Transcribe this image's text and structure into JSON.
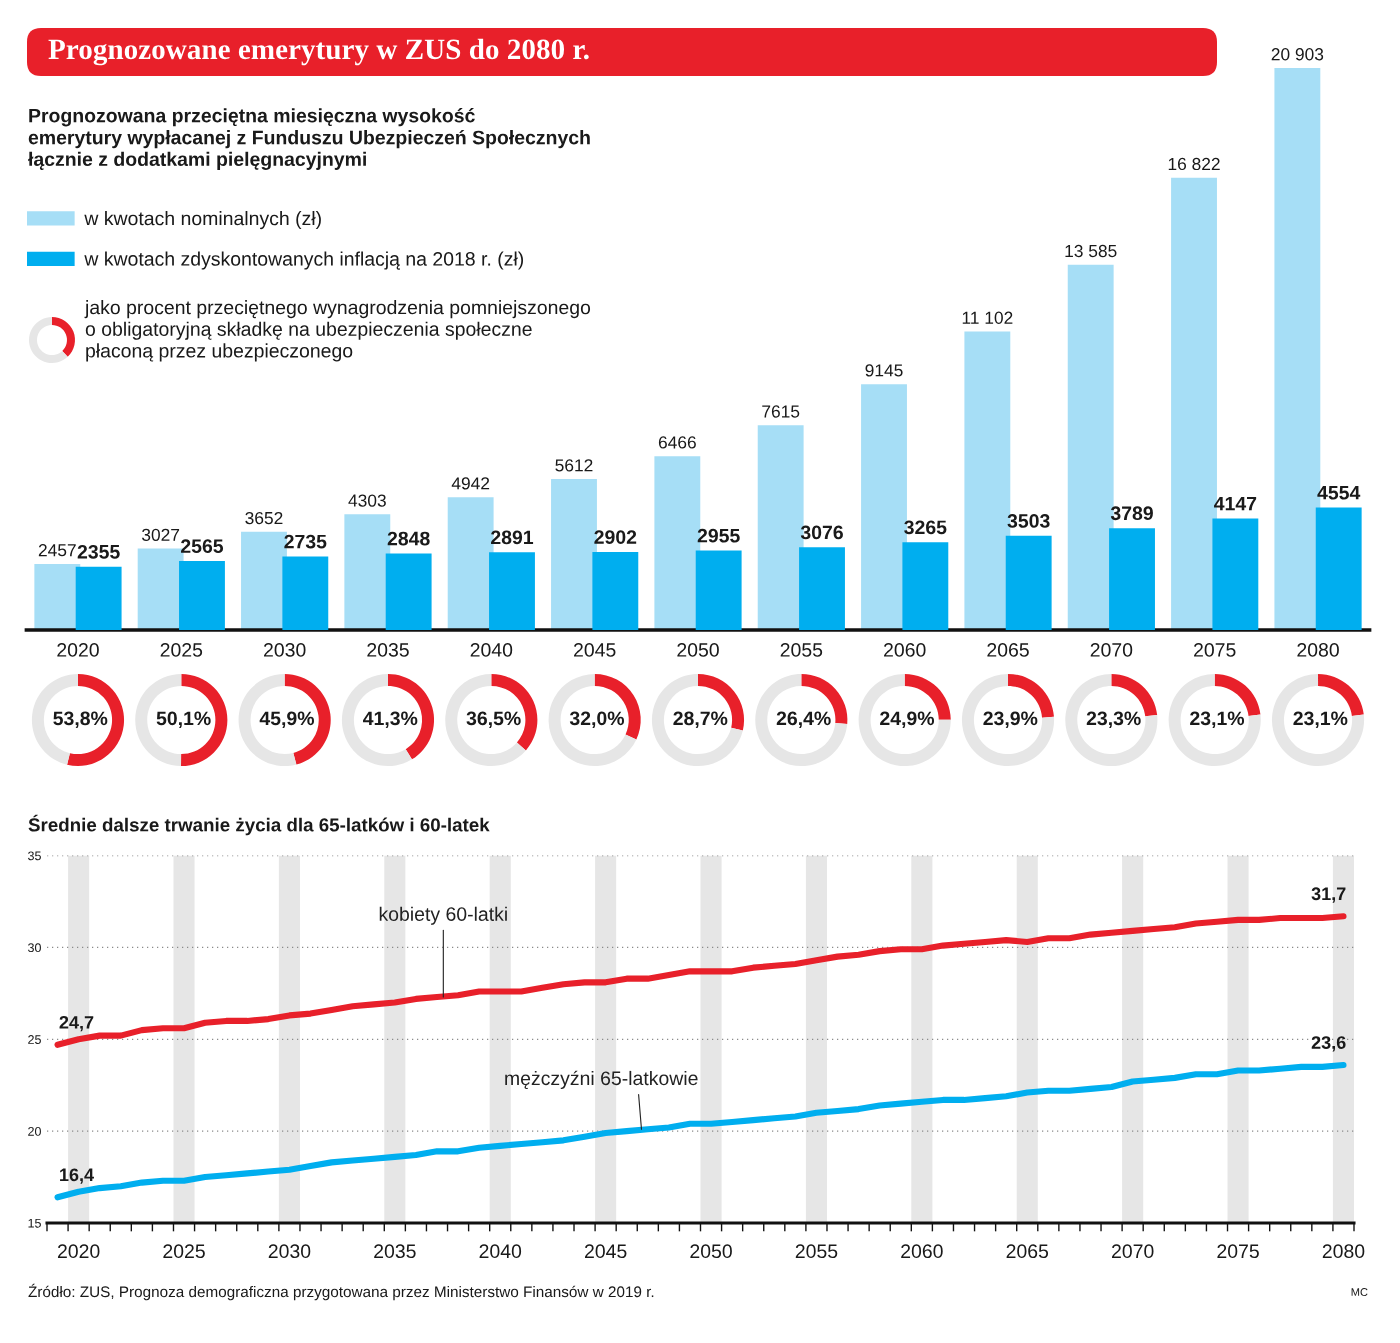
{
  "chart_data": [
    {
      "type": "bar",
      "title": "Prognozowane emerytury w ZUS do 2080 r.",
      "subtitle": "Prognozowana przeciętna miesięczna wysokość\nemerytury wypłacanej z Funduszu Ubezpieczeń Społecznych\nłącznie z dodatkami pielęgnacyjnymi",
      "categories": [
        "2020",
        "2025",
        "2030",
        "2035",
        "2040",
        "2045",
        "2050",
        "2055",
        "2060",
        "2065",
        "2070",
        "2075",
        "2080"
      ],
      "series": [
        {
          "name": "w kwotach nominalnych (zł)",
          "color": "#a6def6",
          "values": [
            2457,
            3027,
            3652,
            4303,
            4942,
            5612,
            6466,
            7615,
            9145,
            11102,
            13585,
            16822,
            20903
          ],
          "value_labels": [
            "2457",
            "3027",
            "3652",
            "4303",
            "4942",
            "5612",
            "6466",
            "7615",
            "9145",
            "11 102",
            "13 585",
            "16 822",
            "20 903"
          ]
        },
        {
          "name": "w kwotach zdyskontowanych inflacją na 2018 r. (zł)",
          "color": "#00aeef",
          "values": [
            2355,
            2565,
            2735,
            2848,
            2891,
            2902,
            2955,
            3076,
            3265,
            3503,
            3789,
            4147,
            4554
          ],
          "value_labels": [
            "2355",
            "2565",
            "2735",
            "2848",
            "2891",
            "2902",
            "2955",
            "3076",
            "3265",
            "3503",
            "3789",
            "4147",
            "4554"
          ]
        }
      ],
      "legend": "top left",
      "annotations": [
        "jako procent przeciętnego wynagrodzenia pomniejszonego\no obligatoryjną składkę na ubezpieczenia społeczne\npłaconą przez ubezpieczonego"
      ]
    },
    {
      "type": "donut",
      "categories": [
        null,
        null
      ],
      "values": [
        53.8,
        46.2
      ],
      "colors": [
        "#e8202a",
        "#e6e6e6"
      ],
      "value_labels": [
        "53,8%",
        null
      ]
    },
    {
      "type": "donut",
      "categories": [
        null,
        null
      ],
      "values": [
        50.1,
        49.9
      ],
      "colors": [
        "#e8202a",
        "#e6e6e6"
      ],
      "value_labels": [
        "50,1%",
        null
      ]
    },
    {
      "type": "donut",
      "categories": [
        null,
        null
      ],
      "values": [
        45.9,
        54.1
      ],
      "colors": [
        "#e8202a",
        "#e6e6e6"
      ],
      "value_labels": [
        "45,9%",
        null
      ]
    },
    {
      "type": "donut",
      "categories": [
        null,
        null
      ],
      "values": [
        41.3,
        58.7
      ],
      "colors": [
        "#e8202a",
        "#e6e6e6"
      ],
      "value_labels": [
        "41,3%",
        null
      ]
    },
    {
      "type": "donut",
      "categories": [
        null,
        null
      ],
      "values": [
        36.5,
        63.5
      ],
      "colors": [
        "#e8202a",
        "#e6e6e6"
      ],
      "value_labels": [
        "36,5%",
        null
      ]
    },
    {
      "type": "donut",
      "categories": [
        null,
        null
      ],
      "values": [
        32.0,
        68.0
      ],
      "colors": [
        "#e8202a",
        "#e6e6e6"
      ],
      "value_labels": [
        "32,0%",
        null
      ]
    },
    {
      "type": "donut",
      "categories": [
        null,
        null
      ],
      "values": [
        28.7,
        71.3
      ],
      "colors": [
        "#e8202a",
        "#e6e6e6"
      ],
      "value_labels": [
        "28,7%",
        null
      ]
    },
    {
      "type": "donut",
      "categories": [
        null,
        null
      ],
      "values": [
        26.4,
        73.6
      ],
      "colors": [
        "#e8202a",
        "#e6e6e6"
      ],
      "value_labels": [
        "26,4%",
        null
      ]
    },
    {
      "type": "donut",
      "categories": [
        null,
        null
      ],
      "values": [
        24.9,
        75.1
      ],
      "colors": [
        "#e8202a",
        "#e6e6e6"
      ],
      "value_labels": [
        "24,9%",
        null
      ]
    },
    {
      "type": "donut",
      "categories": [
        null,
        null
      ],
      "values": [
        23.9,
        76.1
      ],
      "colors": [
        "#e8202a",
        "#e6e6e6"
      ],
      "value_labels": [
        "23,9%",
        null
      ]
    },
    {
      "type": "donut",
      "categories": [
        null,
        null
      ],
      "values": [
        23.3,
        76.7
      ],
      "colors": [
        "#e8202a",
        "#e6e6e6"
      ],
      "value_labels": [
        "23,3%",
        null
      ]
    },
    {
      "type": "donut",
      "categories": [
        null,
        null
      ],
      "values": [
        23.1,
        76.9
      ],
      "colors": [
        "#e8202a",
        "#e6e6e6"
      ],
      "value_labels": [
        "23,1%",
        null
      ]
    },
    {
      "type": "donut",
      "categories": [
        null,
        null
      ],
      "values": [
        23.1,
        76.9
      ],
      "colors": [
        "#e8202a",
        "#e6e6e6"
      ],
      "value_labels": [
        "23,1%",
        null
      ]
    },
    {
      "type": "line",
      "title": "Średnie dalsze trwanie życia dla 65-latków i 60-latek",
      "x": [
        2019,
        2020,
        2021,
        2022,
        2023,
        2024,
        2025,
        2026,
        2027,
        2028,
        2029,
        2030,
        2031,
        2032,
        2033,
        2034,
        2035,
        2036,
        2037,
        2038,
        2039,
        2040,
        2041,
        2042,
        2043,
        2044,
        2045,
        2046,
        2047,
        2048,
        2049,
        2050,
        2051,
        2052,
        2053,
        2054,
        2055,
        2056,
        2057,
        2058,
        2059,
        2060,
        2061,
        2062,
        2063,
        2064,
        2065,
        2066,
        2067,
        2068,
        2069,
        2070,
        2071,
        2072,
        2073,
        2074,
        2075,
        2076,
        2077,
        2078,
        2079,
        2080
      ],
      "series": [
        {
          "color": "#e8202a",
          "values": [
            24.7,
            25.0,
            25.2,
            25.2,
            25.5,
            25.6,
            25.6,
            25.9,
            26.0,
            26.0,
            26.1,
            26.3,
            26.4,
            26.6,
            26.8,
            26.9,
            27.0,
            27.2,
            27.3,
            27.4,
            27.6,
            27.6,
            27.6,
            27.8,
            28.0,
            28.1,
            28.1,
            28.3,
            28.3,
            28.5,
            28.7,
            28.7,
            28.7,
            28.9,
            29.0,
            29.1,
            29.3,
            29.5,
            29.6,
            29.8,
            29.9,
            29.9,
            30.1,
            30.2,
            30.3,
            30.4,
            30.3,
            30.5,
            30.5,
            30.7,
            30.8,
            30.9,
            31.0,
            31.1,
            31.3,
            31.4,
            31.5,
            31.5,
            31.6,
            31.6,
            31.6,
            31.7
          ],
          "value_labels": [
            "24,7",
            null,
            null,
            null,
            null,
            null,
            null,
            null,
            null,
            null,
            null,
            null,
            null,
            null,
            null,
            null,
            null,
            null,
            null,
            null,
            null,
            null,
            null,
            null,
            null,
            null,
            null,
            null,
            null,
            null,
            null,
            null,
            null,
            null,
            null,
            null,
            null,
            null,
            null,
            null,
            null,
            null,
            null,
            null,
            null,
            null,
            null,
            null,
            null,
            null,
            null,
            null,
            null,
            null,
            null,
            null,
            null,
            null,
            null,
            null,
            null,
            "31,7"
          ]
        },
        {
          "color": "#00aeef",
          "values": [
            16.4,
            16.7,
            16.9,
            17.0,
            17.2,
            17.3,
            17.3,
            17.5,
            17.6,
            17.7,
            17.8,
            17.9,
            18.1,
            18.3,
            18.4,
            18.5,
            18.6,
            18.7,
            18.9,
            18.9,
            19.1,
            19.2,
            19.3,
            19.4,
            19.5,
            19.7,
            19.9,
            20.0,
            20.1,
            20.2,
            20.4,
            20.4,
            20.5,
            20.6,
            20.7,
            20.8,
            21.0,
            21.1,
            21.2,
            21.4,
            21.5,
            21.6,
            21.7,
            21.7,
            21.8,
            21.9,
            22.1,
            22.2,
            22.2,
            22.3,
            22.4,
            22.7,
            22.8,
            22.9,
            23.1,
            23.1,
            23.3,
            23.3,
            23.4,
            23.5,
            23.5,
            23.6
          ],
          "value_labels": [
            "16,4",
            null,
            null,
            null,
            null,
            null,
            null,
            null,
            null,
            null,
            null,
            null,
            null,
            null,
            null,
            null,
            null,
            null,
            null,
            null,
            null,
            null,
            null,
            null,
            null,
            null,
            null,
            null,
            null,
            null,
            null,
            null,
            null,
            null,
            null,
            null,
            null,
            null,
            null,
            null,
            null,
            null,
            null,
            null,
            null,
            null,
            null,
            null,
            null,
            null,
            null,
            null,
            null,
            null,
            null,
            null,
            null,
            null,
            null,
            null,
            null,
            "23,6"
          ]
        }
      ],
      "xlim": [
        2018.5,
        2080.5
      ],
      "xticks": [
        {
          "value": 2018.5,
          "label": null
        },
        {
          "value": 2019.5,
          "label": null
        },
        2020,
        {
          "value": 2020.5,
          "label": null
        },
        {
          "value": 2021.5,
          "label": null
        },
        {
          "value": 2022.5,
          "label": null
        },
        {
          "value": 2023.5,
          "label": null
        },
        {
          "value": 2024.5,
          "label": null
        },
        2025,
        {
          "value": 2025.5,
          "label": null
        },
        {
          "value": 2026.5,
          "label": null
        },
        {
          "value": 2027.5,
          "label": null
        },
        {
          "value": 2028.5,
          "label": null
        },
        {
          "value": 2029.5,
          "label": null
        },
        2030,
        {
          "value": 2030.5,
          "label": null
        },
        {
          "value": 2031.5,
          "label": null
        },
        {
          "value": 2032.5,
          "label": null
        },
        {
          "value": 2033.5,
          "label": null
        },
        {
          "value": 2034.5,
          "label": null
        },
        2035,
        {
          "value": 2035.5,
          "label": null
        },
        {
          "value": 2036.5,
          "label": null
        },
        {
          "value": 2037.5,
          "label": null
        },
        {
          "value": 2038.5,
          "label": null
        },
        {
          "value": 2039.5,
          "label": null
        },
        2040,
        {
          "value": 2040.5,
          "label": null
        },
        {
          "value": 2041.5,
          "label": null
        },
        {
          "value": 2042.5,
          "label": null
        },
        {
          "value": 2043.5,
          "label": null
        },
        {
          "value": 2044.5,
          "label": null
        },
        2045,
        {
          "value": 2045.5,
          "label": null
        },
        {
          "value": 2046.5,
          "label": null
        },
        {
          "value": 2047.5,
          "label": null
        },
        {
          "value": 2048.5,
          "label": null
        },
        {
          "value": 2049.5,
          "label": null
        },
        2050,
        {
          "value": 2050.5,
          "label": null
        },
        {
          "value": 2051.5,
          "label": null
        },
        {
          "value": 2052.5,
          "label": null
        },
        {
          "value": 2053.5,
          "label": null
        },
        {
          "value": 2054.5,
          "label": null
        },
        2055,
        {
          "value": 2055.5,
          "label": null
        },
        {
          "value": 2056.5,
          "label": null
        },
        {
          "value": 2057.5,
          "label": null
        },
        {
          "value": 2058.5,
          "label": null
        },
        {
          "value": 2059.5,
          "label": null
        },
        2060,
        {
          "value": 2060.5,
          "label": null
        },
        {
          "value": 2061.5,
          "label": null
        },
        {
          "value": 2062.5,
          "label": null
        },
        {
          "value": 2063.5,
          "label": null
        },
        {
          "value": 2064.5,
          "label": null
        },
        2065,
        {
          "value": 2065.5,
          "label": null
        },
        {
          "value": 2066.5,
          "label": null
        },
        {
          "value": 2067.5,
          "label": null
        },
        {
          "value": 2068.5,
          "label": null
        },
        {
          "value": 2069.5,
          "label": null
        },
        2070,
        {
          "value": 2070.5,
          "label": null
        },
        {
          "value": 2071.5,
          "label": null
        },
        {
          "value": 2072.5,
          "label": null
        },
        {
          "value": 2073.5,
          "label": null
        },
        {
          "value": 2074.5,
          "label": null
        },
        2075,
        {
          "value": 2075.5,
          "label": null
        },
        {
          "value": 2076.5,
          "label": null
        },
        {
          "value": 2077.5,
          "label": null
        },
        {
          "value": 2078.5,
          "label": null
        },
        {
          "value": 2079.5,
          "label": null
        },
        2080,
        {
          "value": 2080.5,
          "label": null
        }
      ],
      "ylim": [
        15,
        35
      ],
      "yticks": [
        15,
        20,
        25,
        30,
        35
      ],
      "grid": "y",
      "bands": [
        {
          "axis": "x",
          "from": 2019.5,
          "to": 2020.5,
          "color": "#e6e6e6"
        },
        {
          "axis": "x",
          "from": 2024.5,
          "to": 2025.5,
          "color": "#e6e6e6"
        },
        {
          "axis": "x",
          "from": 2029.5,
          "to": 2030.5,
          "color": "#e6e6e6"
        },
        {
          "axis": "x",
          "from": 2034.5,
          "to": 2035.5,
          "color": "#e6e6e6"
        },
        {
          "axis": "x",
          "from": 2039.5,
          "to": 2040.5,
          "color": "#e6e6e6"
        },
        {
          "axis": "x",
          "from": 2044.5,
          "to": 2045.5,
          "color": "#e6e6e6"
        },
        {
          "axis": "x",
          "from": 2049.5,
          "to": 2050.5,
          "color": "#e6e6e6"
        },
        {
          "axis": "x",
          "from": 2054.5,
          "to": 2055.5,
          "color": "#e6e6e6"
        },
        {
          "axis": "x",
          "from": 2059.5,
          "to": 2060.5,
          "color": "#e6e6e6"
        },
        {
          "axis": "x",
          "from": 2064.5,
          "to": 2065.5,
          "color": "#e6e6e6"
        },
        {
          "axis": "x",
          "from": 2069.5,
          "to": 2070.5,
          "color": "#e6e6e6"
        },
        {
          "axis": "x",
          "from": 2074.5,
          "to": 2075.5,
          "color": "#e6e6e6"
        },
        {
          "axis": "x",
          "from": 2079.5,
          "to": 2080.5,
          "color": "#e6e6e6"
        }
      ],
      "annotations": [
        {
          "text": "kobiety 60-latki",
          "x": 2037.3,
          "y": 27.3
        },
        {
          "text": "mężczyźni 65-latkowie",
          "x": 2046.7,
          "y": 20.1
        },
        "Źródło: ZUS, Prognoza demograficzna przygotowana przez Ministerstwo Finansów w 2019 r.",
        "MC"
      ]
    }
  ]
}
